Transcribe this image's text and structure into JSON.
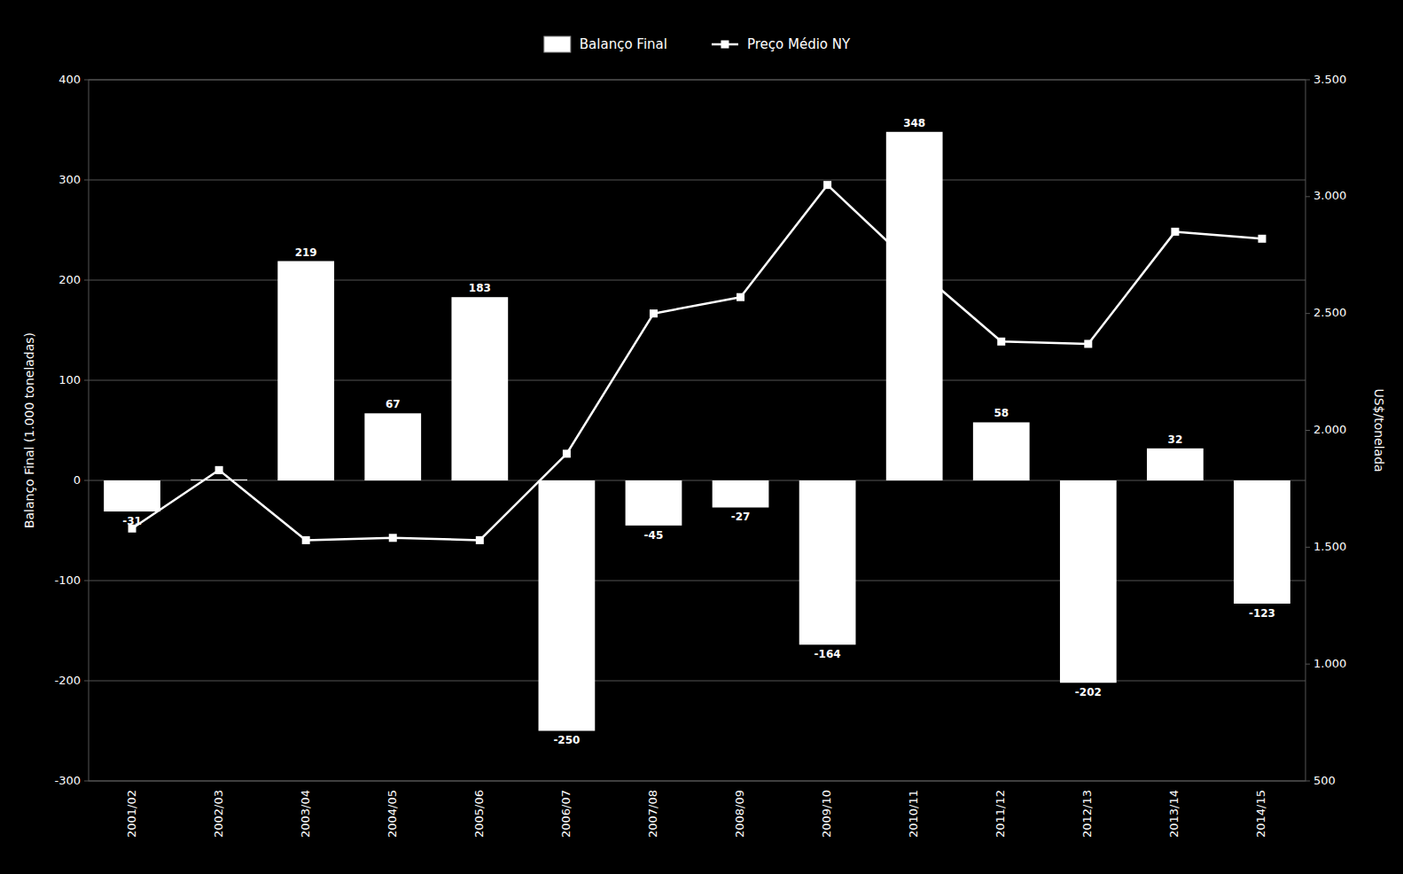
{
  "chart_data": {
    "type": "bar",
    "categories": [
      "2001/02",
      "2002/03",
      "2003/04",
      "2004/05",
      "2005/06",
      "2006/07",
      "2007/08",
      "2008/09",
      "2009/10",
      "2010/11",
      "2011/12",
      "2012/13",
      "2013/14",
      "2014/15"
    ],
    "series": [
      {
        "name": "Balanço Final",
        "type": "bar",
        "color": "#ffffff",
        "data_labels": true,
        "values": [
          -31,
          1,
          219,
          67,
          183,
          -250,
          -45,
          -27,
          -164,
          348,
          58,
          -202,
          32,
          -123
        ]
      },
      {
        "name": "Preço Médio NY",
        "type": "line",
        "axis": "y2",
        "color": "#ffffff",
        "marker": "square",
        "values": [
          1580,
          1830,
          1530,
          1540,
          1530,
          1900,
          2500,
          2570,
          3050,
          2700,
          2380,
          2370,
          2850,
          2820
        ]
      }
    ],
    "ylabel": "Balanço Final (1.000 toneladas)",
    "y2label": "US$/tonelada",
    "ylim": [
      -300,
      400
    ],
    "yticks": [
      -300,
      -200,
      -100,
      0,
      100,
      200,
      300,
      400
    ],
    "y2lim": [
      500,
      3500
    ],
    "y2ticks": [
      500,
      {
        "value": 1000,
        "label": "1.000"
      },
      {
        "value": 1500,
        "label": "1.500"
      },
      {
        "value": 2000,
        "label": "2.000"
      },
      {
        "value": 2500,
        "label": "2.500"
      },
      {
        "value": 3000,
        "label": "3.000"
      },
      {
        "value": 3500,
        "label": "3.500"
      }
    ],
    "grid": true,
    "legend": "top"
  }
}
